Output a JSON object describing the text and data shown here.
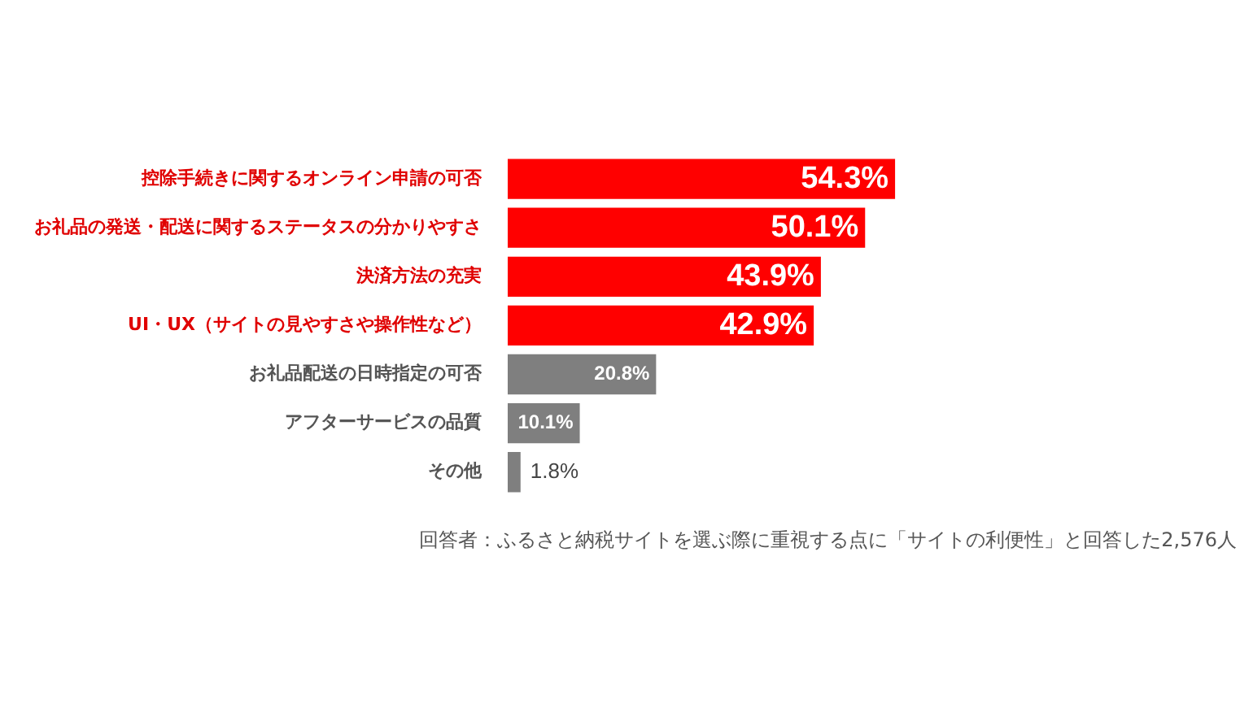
{
  "chart_data": {
    "type": "bar",
    "orientation": "horizontal",
    "categories": [
      "控除手続きに関するオンライン申請の可否",
      "お礼品の発送・配送に関するステータスの分かりやすさ",
      "決済方法の充実",
      "UI・UX（サイトの見やすさや操作性など）",
      "お礼品配送の日時指定の可否",
      "アフターサービスの品質",
      "その他"
    ],
    "values": [
      54.3,
      50.1,
      43.9,
      42.9,
      20.8,
      10.1,
      1.8
    ],
    "colors": [
      "#ff0000",
      "#ff0000",
      "#ff0000",
      "#ff0000",
      "#7f7f7f",
      "#7f7f7f",
      "#7f7f7f"
    ],
    "value_labels": [
      "54.3%",
      "50.1%",
      "43.9%",
      "42.9%",
      "20.8%",
      "10.1%",
      "1.8%"
    ],
    "tick_labels": "y",
    "grid": false,
    "legend": false,
    "annotations": [
      "回答者：ふるさと納税サイトを選ぶ際に重視する点に「サイトの利便性」と回答した2,576人"
    ]
  }
}
